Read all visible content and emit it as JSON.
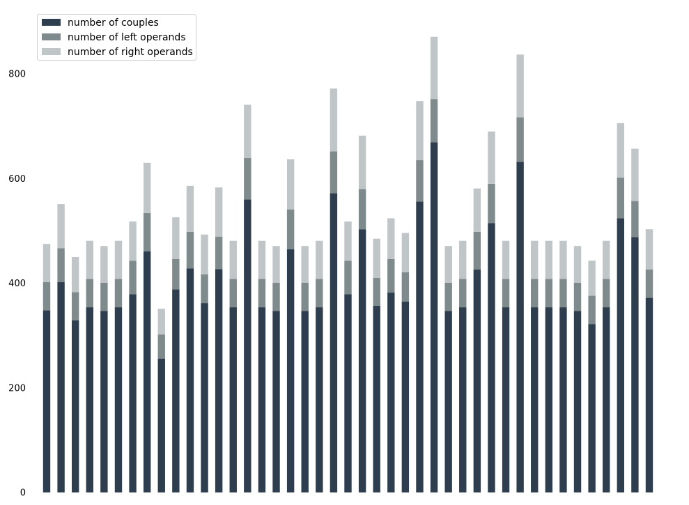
{
  "chart_data": {
    "type": "bar",
    "stacked": true,
    "title": "",
    "xlabel": "",
    "ylabel": "",
    "ylim": [
      0,
      880
    ],
    "yticks": [
      0,
      200,
      400,
      600,
      800
    ],
    "grid": false,
    "legend_position": "top-left",
    "series": [
      {
        "name": "number of couples",
        "color": "#2e3e4e",
        "values": [
          348,
          402,
          329,
          354,
          347,
          354,
          379,
          461,
          256,
          388,
          428,
          362,
          427,
          354,
          560,
          354,
          347,
          465,
          347,
          354,
          572,
          379,
          503,
          357,
          382,
          365,
          556,
          669,
          347,
          354,
          426,
          515,
          354,
          632,
          354,
          354,
          354,
          347,
          322,
          354,
          524,
          488,
          372
        ]
      },
      {
        "name": "number of left operands",
        "color": "#7e8a8c",
        "values": [
          54,
          65,
          54,
          54,
          54,
          54,
          64,
          73,
          46,
          58,
          70,
          55,
          62,
          54,
          79,
          54,
          54,
          76,
          54,
          54,
          80,
          64,
          77,
          53,
          64,
          56,
          79,
          83,
          54,
          54,
          72,
          75,
          54,
          85,
          54,
          54,
          54,
          54,
          54,
          54,
          78,
          69,
          54
        ]
      },
      {
        "name": "number of right operands",
        "color": "#c0c5c8",
        "values": [
          73,
          84,
          67,
          73,
          70,
          73,
          75,
          96,
          49,
          80,
          88,
          76,
          94,
          73,
          102,
          73,
          70,
          96,
          70,
          73,
          120,
          75,
          102,
          75,
          78,
          75,
          113,
          119,
          70,
          73,
          83,
          100,
          73,
          120,
          73,
          73,
          73,
          70,
          67,
          73,
          104,
          100,
          77
        ]
      }
    ]
  }
}
